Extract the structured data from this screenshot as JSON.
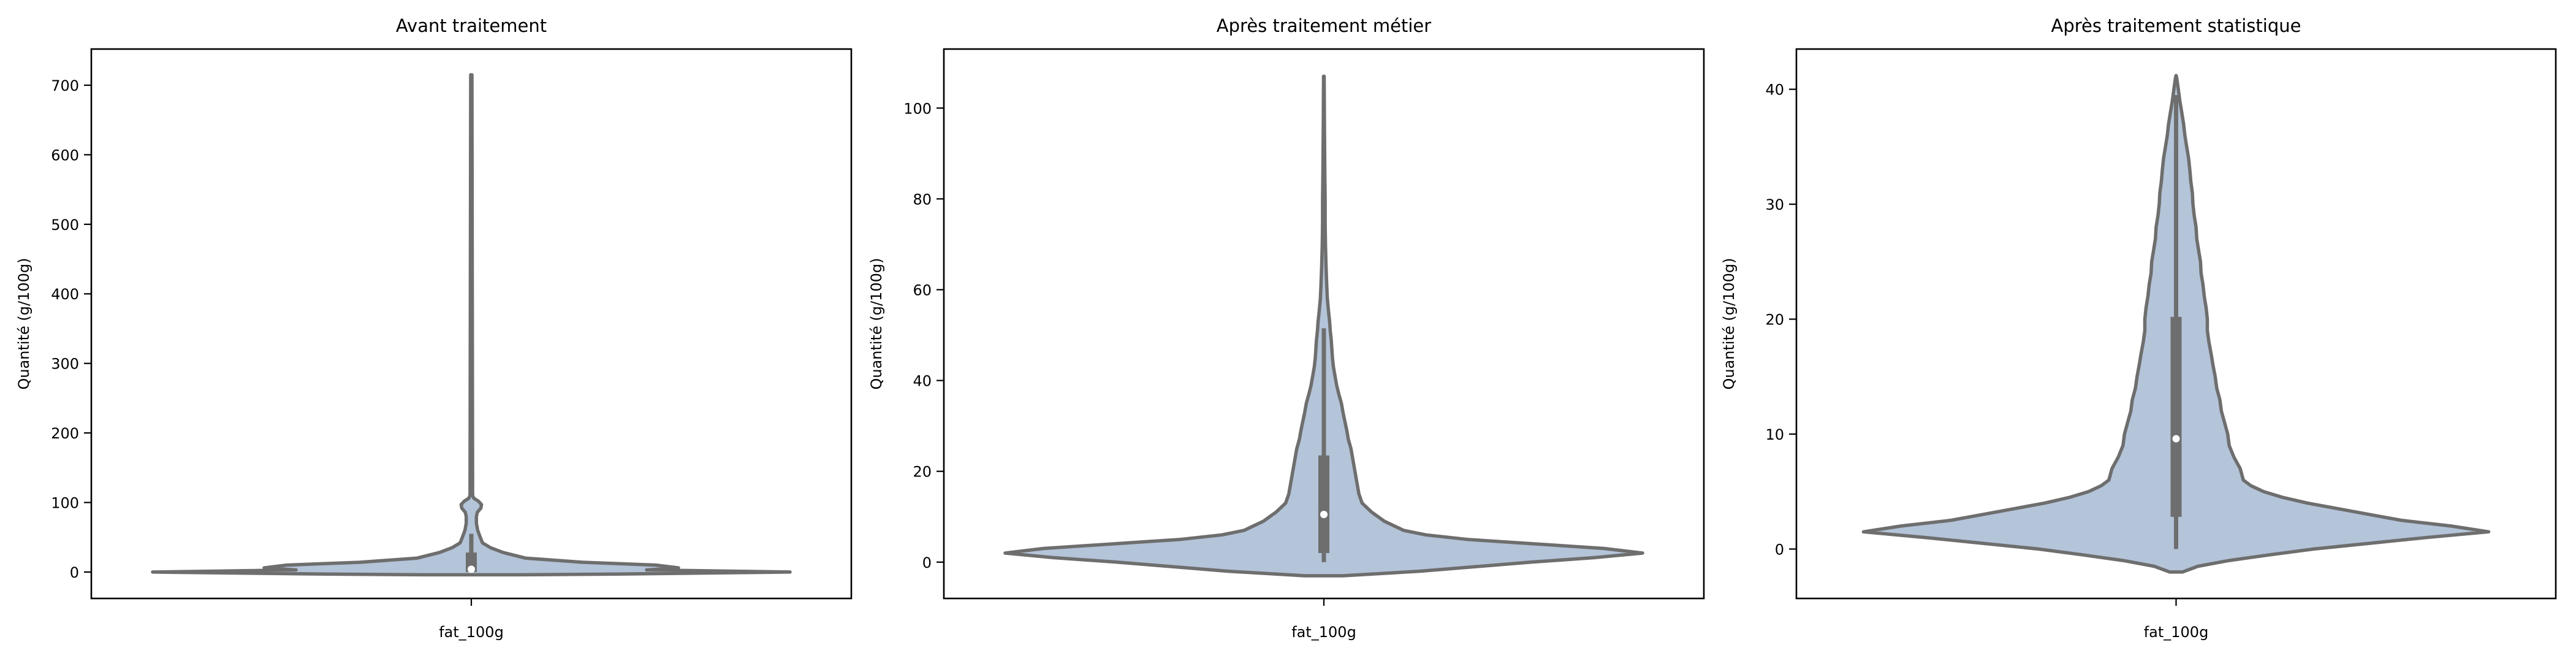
{
  "chart_data": [
    {
      "type": "violin",
      "title": "Avant traitement",
      "ylabel": "Quantité (g/100g)",
      "xlabel": "",
      "categories": [
        "fat_100g"
      ],
      "ylim": [
        -38,
        752
      ],
      "yticks": [
        0,
        100,
        200,
        300,
        400,
        500,
        600,
        700
      ],
      "box": {
        "min": 0,
        "q1": 0,
        "median": 4,
        "q3": 28,
        "whisker_low": 0,
        "whisker_high": 55,
        "max": 715
      },
      "density": [
        [
          -4,
          0.15
        ],
        [
          -3,
          0.45
        ],
        [
          0,
          1.0
        ],
        [
          3,
          0.55
        ],
        [
          6,
          0.65
        ],
        [
          10,
          0.58
        ],
        [
          14,
          0.35
        ],
        [
          20,
          0.17
        ],
        [
          28,
          0.1
        ],
        [
          35,
          0.06
        ],
        [
          42,
          0.035
        ],
        [
          50,
          0.028
        ],
        [
          60,
          0.02
        ],
        [
          70,
          0.016
        ],
        [
          80,
          0.016
        ],
        [
          86,
          0.019
        ],
        [
          92,
          0.03
        ],
        [
          97,
          0.032
        ],
        [
          102,
          0.022
        ],
        [
          106,
          0.008
        ],
        [
          110,
          0.004
        ],
        [
          715,
          0.002
        ]
      ]
    },
    {
      "type": "violin",
      "title": "Après traitement métier",
      "ylabel": "Quantité (g/100g)",
      "xlabel": "",
      "categories": [
        "fat_100g"
      ],
      "ylim": [
        -8,
        113
      ],
      "yticks": [
        0,
        20,
        40,
        60,
        80,
        100
      ],
      "box": {
        "min": 0,
        "q1": 2,
        "median": 10.5,
        "q3": 23.5,
        "whisker_low": 0,
        "whisker_high": 51.5,
        "max": 107
      },
      "density": [
        [
          -3,
          0.06
        ],
        [
          -2,
          0.3
        ],
        [
          0,
          0.65
        ],
        [
          1,
          0.85
        ],
        [
          2,
          1.0
        ],
        [
          3,
          0.88
        ],
        [
          5,
          0.45
        ],
        [
          6,
          0.32
        ],
        [
          7,
          0.25
        ],
        [
          9,
          0.19
        ],
        [
          11,
          0.15
        ],
        [
          13,
          0.12
        ],
        [
          15,
          0.11
        ],
        [
          17,
          0.105
        ],
        [
          19,
          0.1
        ],
        [
          21,
          0.095
        ],
        [
          23,
          0.09
        ],
        [
          25,
          0.085
        ],
        [
          27,
          0.077
        ],
        [
          29,
          0.072
        ],
        [
          31,
          0.066
        ],
        [
          33,
          0.06
        ],
        [
          35,
          0.055
        ],
        [
          37,
          0.047
        ],
        [
          39,
          0.04
        ],
        [
          41,
          0.035
        ],
        [
          43,
          0.03
        ],
        [
          45,
          0.027
        ],
        [
          47,
          0.025
        ],
        [
          49,
          0.023
        ],
        [
          51,
          0.02
        ],
        [
          53,
          0.018
        ],
        [
          55,
          0.015
        ],
        [
          58,
          0.011
        ],
        [
          61,
          0.009
        ],
        [
          65,
          0.007
        ],
        [
          70,
          0.005
        ],
        [
          75,
          0.004
        ],
        [
          80,
          0.004
        ],
        [
          85,
          0.003
        ],
        [
          95,
          0.002
        ],
        [
          107,
          0.001
        ]
      ]
    },
    {
      "type": "violin",
      "title": "Après traitement statistique",
      "ylabel": "Quantité (g/100g)",
      "xlabel": "",
      "categories": [
        "fat_100g"
      ],
      "ylim": [
        -4.3,
        43.5
      ],
      "yticks": [
        0,
        10,
        20,
        30,
        40
      ],
      "box": {
        "min": 0,
        "q1": 2.8,
        "median": 9.6,
        "q3": 20.2,
        "whisker_low": 0,
        "whisker_high": 39.5,
        "max": 41.2
      },
      "density": [
        [
          -2,
          0.02
        ],
        [
          -1.5,
          0.07
        ],
        [
          -1,
          0.17
        ],
        [
          -0.5,
          0.3
        ],
        [
          0,
          0.44
        ],
        [
          0.5,
          0.62
        ],
        [
          1,
          0.8
        ],
        [
          1.5,
          1.0
        ],
        [
          2,
          0.88
        ],
        [
          2.5,
          0.72
        ],
        [
          3,
          0.62
        ],
        [
          3.5,
          0.52
        ],
        [
          4,
          0.42
        ],
        [
          4.5,
          0.34
        ],
        [
          5,
          0.28
        ],
        [
          5.5,
          0.24
        ],
        [
          6,
          0.215
        ],
        [
          7,
          0.205
        ],
        [
          8,
          0.185
        ],
        [
          9,
          0.17
        ],
        [
          10,
          0.165
        ],
        [
          11,
          0.155
        ],
        [
          12,
          0.145
        ],
        [
          13,
          0.14
        ],
        [
          14,
          0.13
        ],
        [
          15,
          0.125
        ],
        [
          16,
          0.118
        ],
        [
          17,
          0.112
        ],
        [
          18,
          0.105
        ],
        [
          19,
          0.1
        ],
        [
          20,
          0.1
        ],
        [
          21,
          0.096
        ],
        [
          22,
          0.09
        ],
        [
          23,
          0.086
        ],
        [
          24,
          0.08
        ],
        [
          25,
          0.078
        ],
        [
          26,
          0.072
        ],
        [
          27,
          0.066
        ],
        [
          28,
          0.064
        ],
        [
          29,
          0.058
        ],
        [
          30,
          0.054
        ],
        [
          31,
          0.052
        ],
        [
          32,
          0.047
        ],
        [
          33,
          0.044
        ],
        [
          34,
          0.04
        ],
        [
          35,
          0.034
        ],
        [
          36,
          0.028
        ],
        [
          37,
          0.024
        ],
        [
          38,
          0.018
        ],
        [
          39,
          0.012
        ],
        [
          40,
          0.007
        ],
        [
          41,
          0.002
        ],
        [
          41.2,
          0
        ]
      ]
    }
  ],
  "xtick_label": "fat_100g",
  "colors": {
    "violin_fill": "#b4c4d9",
    "violin_edge": "#6e6e6e",
    "box": "#6e6e6e",
    "median_dot": "#ffffff",
    "axes": "#000000"
  }
}
